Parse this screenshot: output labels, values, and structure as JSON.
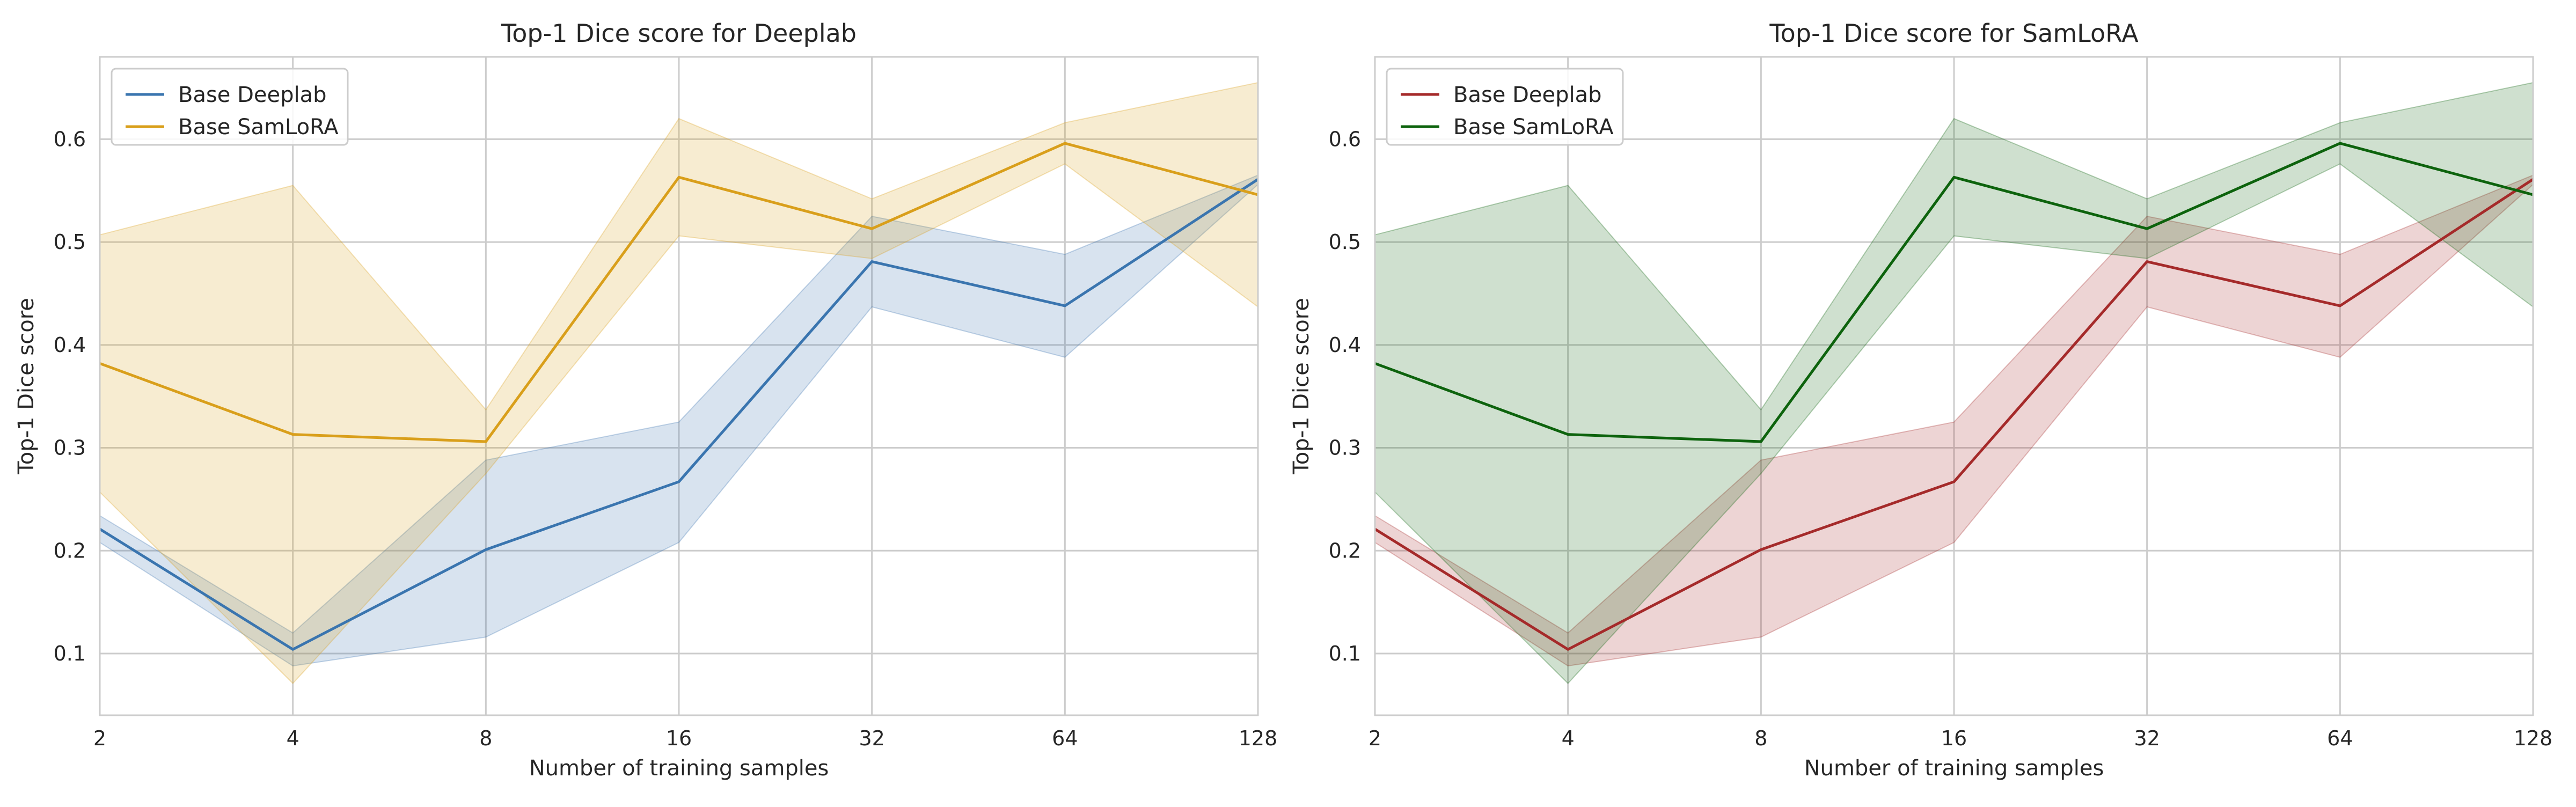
{
  "colors": {
    "background": "#ffffff",
    "grid": "#cccccc",
    "frame": "#cccccc",
    "text": "#262626",
    "legend_border": "#cccccc"
  },
  "chart_data": [
    {
      "type": "line",
      "title": "Top-1 Dice score for Deeplab",
      "xlabel": "Number of training samples",
      "ylabel": "Top-1 Dice score",
      "x_scale": "log2",
      "x": [
        2,
        4,
        8,
        16,
        32,
        64,
        128
      ],
      "x_tick_labels": [
        "2",
        "4",
        "8",
        "16",
        "32",
        "64",
        "128"
      ],
      "y_ticks": [
        0.1,
        0.2,
        0.3,
        0.4,
        0.5,
        0.6
      ],
      "y_tick_labels": [
        "0.1",
        "0.2",
        "0.3",
        "0.4",
        "0.5",
        "0.6"
      ],
      "ylim": [
        0.04,
        0.68
      ],
      "grid": true,
      "legend_position": "top-left",
      "series": [
        {
          "name": "Base Deeplab",
          "color": "#3a75af",
          "values": [
            0.221,
            0.104,
            0.201,
            0.267,
            0.481,
            0.438,
            0.561
          ],
          "lower": [
            0.208,
            0.088,
            0.116,
            0.208,
            0.437,
            0.388,
            0.556
          ],
          "upper": [
            0.234,
            0.12,
            0.288,
            0.325,
            0.525,
            0.488,
            0.565
          ]
        },
        {
          "name": "Base SamLoRA",
          "color": "#d99f1b",
          "values": [
            0.382,
            0.313,
            0.306,
            0.563,
            0.513,
            0.596,
            0.546
          ],
          "lower": [
            0.257,
            0.071,
            0.275,
            0.506,
            0.484,
            0.576,
            0.437
          ],
          "upper": [
            0.507,
            0.555,
            0.337,
            0.62,
            0.542,
            0.616,
            0.655
          ]
        }
      ]
    },
    {
      "type": "line",
      "title": "Top-1 Dice score for SamLoRA",
      "xlabel": "Number of training samples",
      "ylabel": "Top-1 Dice score",
      "x_scale": "log2",
      "x": [
        2,
        4,
        8,
        16,
        32,
        64,
        128
      ],
      "x_tick_labels": [
        "2",
        "4",
        "8",
        "16",
        "32",
        "64",
        "128"
      ],
      "y_ticks": [
        0.1,
        0.2,
        0.3,
        0.4,
        0.5,
        0.6
      ],
      "y_tick_labels": [
        "0.1",
        "0.2",
        "0.3",
        "0.4",
        "0.5",
        "0.6"
      ],
      "ylim": [
        0.04,
        0.68
      ],
      "grid": true,
      "legend_position": "top-left",
      "series": [
        {
          "name": "Base Deeplab",
          "color": "#a52a2a",
          "values": [
            0.221,
            0.104,
            0.201,
            0.267,
            0.481,
            0.438,
            0.561
          ],
          "lower": [
            0.208,
            0.088,
            0.116,
            0.208,
            0.437,
            0.388,
            0.556
          ],
          "upper": [
            0.234,
            0.12,
            0.288,
            0.325,
            0.525,
            0.488,
            0.565
          ]
        },
        {
          "name": "Base SamLoRA",
          "color": "#0d630d",
          "values": [
            0.382,
            0.313,
            0.306,
            0.563,
            0.513,
            0.596,
            0.546
          ],
          "lower": [
            0.257,
            0.071,
            0.275,
            0.506,
            0.484,
            0.576,
            0.437
          ],
          "upper": [
            0.507,
            0.555,
            0.337,
            0.62,
            0.542,
            0.616,
            0.655
          ]
        }
      ]
    }
  ]
}
